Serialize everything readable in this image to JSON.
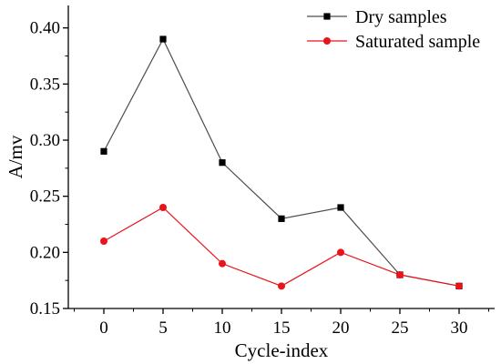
{
  "chart_data": {
    "type": "line",
    "title": "",
    "xlabel": "Cycle-index",
    "ylabel": "A/mv",
    "x": [
      0,
      5,
      10,
      15,
      20,
      25,
      30
    ],
    "xticks": [
      "0",
      "5",
      "10",
      "15",
      "20",
      "25",
      "30"
    ],
    "yticks": [
      "0.15",
      "0.20",
      "0.25",
      "0.30",
      "0.35",
      "0.40"
    ],
    "xlim": [
      -3,
      33
    ],
    "ylim": [
      0.15,
      0.42
    ],
    "grid": false,
    "legend_position": "top-right",
    "series": [
      {
        "name": "Dry samples",
        "color": "#000000",
        "line_color": "#4d4d4d",
        "marker": "square",
        "values": [
          0.29,
          0.39,
          0.28,
          0.23,
          0.24,
          0.18,
          0.17
        ]
      },
      {
        "name": "Saturated sample",
        "color": "#e8141a",
        "line_color": "#e8141a",
        "marker": "circle",
        "values": [
          0.21,
          0.24,
          0.19,
          0.17,
          0.2,
          0.18,
          0.17
        ]
      }
    ]
  }
}
